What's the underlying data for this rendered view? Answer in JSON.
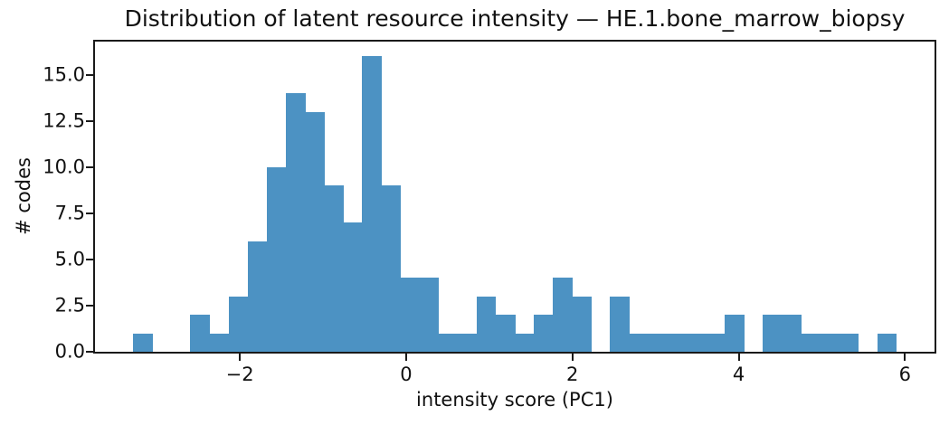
{
  "chart_data": {
    "type": "histogram",
    "title": "Distribution of latent resource intensity — HE.1.bone_marrow_biopsy",
    "xlabel": "intensity score (PC1)",
    "ylabel": "# codes",
    "bar_color": "#4C92C3",
    "axis_color": "#1a1a1a",
    "text_color": "#111111",
    "bin_start": -3.284,
    "bin_width": 0.2295,
    "counts": [
      1,
      0,
      0,
      2,
      1,
      3,
      6,
      10,
      14,
      13,
      9,
      7,
      16,
      9,
      4,
      4,
      1,
      1,
      3,
      2,
      1,
      2,
      4,
      3,
      0,
      3,
      1,
      1,
      1,
      1,
      1,
      2,
      0,
      2,
      2,
      1,
      1,
      1,
      0,
      1
    ],
    "xlim": [
      -3.743,
      6.356
    ],
    "ylim": [
      0,
      16.8
    ],
    "xticks": [
      {
        "value": -2,
        "label": "−2"
      },
      {
        "value": 0,
        "label": "0"
      },
      {
        "value": 2,
        "label": "2"
      },
      {
        "value": 4,
        "label": "4"
      },
      {
        "value": 6,
        "label": "6"
      }
    ],
    "yticks": [
      {
        "value": 0,
        "label": "0.0"
      },
      {
        "value": 2.5,
        "label": "2.5"
      },
      {
        "value": 5,
        "label": "5.0"
      },
      {
        "value": 7.5,
        "label": "7.5"
      },
      {
        "value": 10,
        "label": "10.0"
      },
      {
        "value": 12.5,
        "label": "12.5"
      },
      {
        "value": 15,
        "label": "15.0"
      }
    ],
    "grid": false,
    "legend": null
  }
}
